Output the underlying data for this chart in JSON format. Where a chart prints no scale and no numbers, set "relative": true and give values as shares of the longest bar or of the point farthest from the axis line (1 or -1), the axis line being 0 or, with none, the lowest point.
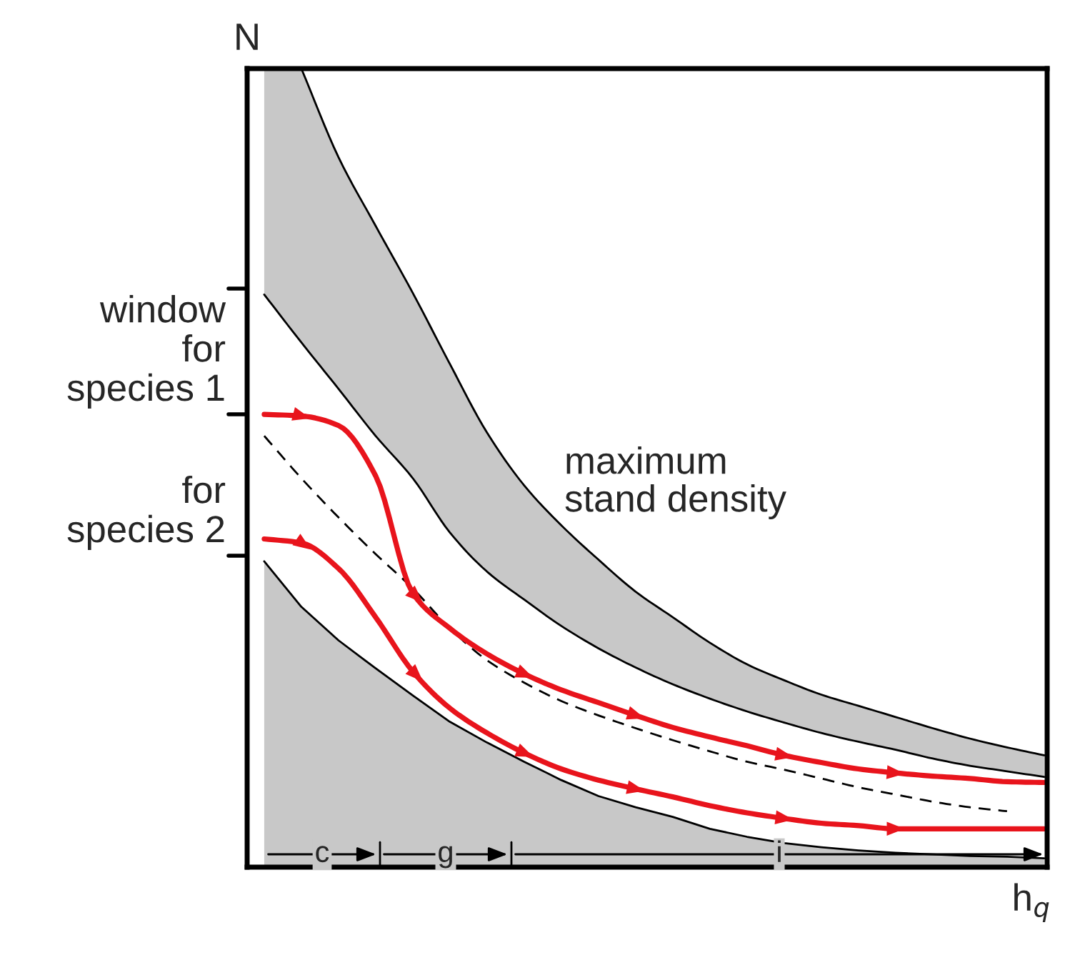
{
  "chart_data": {
    "type": "line",
    "relative": true,
    "xlabel": "h$_{q}$",
    "ylabel": "N",
    "categories": [
      null,
      null,
      null,
      null,
      null,
      null,
      null,
      null,
      null,
      null,
      null,
      null,
      null,
      null,
      null,
      null,
      null,
      null,
      null,
      null,
      null,
      null
    ],
    "series": [
      {
        "type": "area",
        "color": "#c8c8c8",
        "values": [
          0.383,
          0.326,
          0.284,
          0.249,
          0.215,
          0.182,
          0.156,
          0.132,
          0.109,
          0.089,
          0.075,
          0.063,
          0.048,
          0.038,
          0.03,
          0.025,
          0.021,
          0.018,
          0.016,
          0.014,
          0.013,
          0.011
        ]
      },
      {
        "color": "#000000",
        "values": [
          0.717,
          0.657,
          0.599,
          0.54,
          0.487,
          0.419,
          0.37,
          0.335,
          0.302,
          0.274,
          0.25,
          0.229,
          0.211,
          0.195,
          0.181,
          0.168,
          0.157,
          0.147,
          0.136,
          0.127,
          0.12,
          0.113
        ]
      },
      {
        "color": "#000000",
        "values": [
          null,
          1.0,
          0.889,
          0.803,
          0.719,
          0.63,
          0.544,
          0.478,
          0.428,
          0.385,
          0.345,
          0.313,
          0.281,
          0.254,
          0.234,
          0.216,
          0.202,
          0.188,
          0.174,
          0.161,
          0.15,
          0.14
        ],
        "lower": [
          0.717,
          0.657,
          0.599,
          0.54,
          0.487,
          0.419,
          0.37,
          0.335,
          0.302,
          0.274,
          0.25,
          0.229,
          0.211,
          0.195,
          0.181,
          0.168,
          0.157,
          0.147,
          0.136,
          0.127,
          0.12,
          0.113
        ],
        "upper": [
          1.0,
          1.0,
          0.889,
          0.803,
          0.719,
          0.63,
          0.544,
          0.478,
          0.428,
          0.385,
          0.345,
          0.313,
          0.281,
          0.254,
          0.234,
          0.216,
          0.202,
          0.188,
          0.174,
          0.161,
          0.15,
          0.14
        ]
      },
      {
        "color": "#000000",
        "line_style": "dashed",
        "values": [
          0.54,
          0.487,
          0.438,
          0.392,
          0.349,
          0.299,
          0.259,
          0.231,
          0.208,
          0.19,
          0.174,
          0.159,
          0.145,
          0.132,
          0.122,
          0.111,
          0.1,
          0.091,
          0.082,
          0.075,
          0.07,
          null
        ]
      },
      {
        "color": "#e8141c",
        "values": [
          0.567,
          0.565,
          0.553,
          0.49,
          0.343,
          0.299,
          0.267,
          0.242,
          0.222,
          0.206,
          0.19,
          0.175,
          0.163,
          0.152,
          0.14,
          0.131,
          0.123,
          0.118,
          0.114,
          0.111,
          0.107,
          0.106
        ]
      },
      {
        "color": "#e8141c",
        "values": [
          0.411,
          0.406,
          0.374,
          0.313,
          0.245,
          0.199,
          0.168,
          0.143,
          0.123,
          0.109,
          0.098,
          0.088,
          0.077,
          0.068,
          0.061,
          0.055,
          0.052,
          0.048,
          0.048,
          0.048,
          0.048,
          0.048
        ]
      }
    ],
    "annotations": [
      "window\nfor\nspecies 1",
      "for\nspecies 2",
      "maximum\nstand density",
      "c",
      "g",
      "i"
    ],
    "legend": false
  }
}
